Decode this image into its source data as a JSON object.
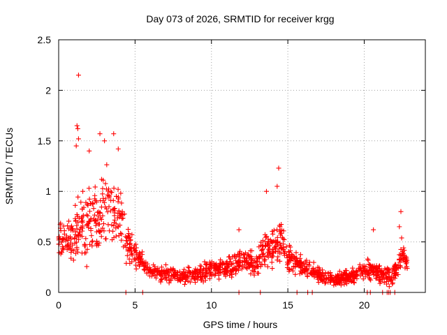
{
  "chart_data": {
    "type": "scatter",
    "title": "Day 073 of 2026, SRMTID for receiver krgg",
    "xlabel": "GPS time / hours",
    "ylabel": "SRMTID / TECUs",
    "xlim": [
      0,
      24
    ],
    "ylim": [
      0,
      2.5
    ],
    "xticks": [
      "0",
      "5",
      "10",
      "15",
      "20"
    ],
    "yticks": [
      "0",
      "0.5",
      "1",
      "1.5",
      "2",
      "2.5"
    ],
    "grid": true,
    "marker": "plus",
    "marker_color": "#ff0000",
    "series": [
      {
        "name": "SRMTID",
        "profile": [
          {
            "x": 0.0,
            "y": 0.55,
            "spread": 0.22
          },
          {
            "x": 0.5,
            "y": 0.48,
            "spread": 0.2
          },
          {
            "x": 1.0,
            "y": 0.55,
            "spread": 0.3
          },
          {
            "x": 1.5,
            "y": 0.65,
            "spread": 0.45
          },
          {
            "x": 2.0,
            "y": 0.7,
            "spread": 0.45
          },
          {
            "x": 2.5,
            "y": 0.8,
            "spread": 0.45
          },
          {
            "x": 3.0,
            "y": 0.85,
            "spread": 0.45
          },
          {
            "x": 3.5,
            "y": 0.8,
            "spread": 0.45
          },
          {
            "x": 4.0,
            "y": 0.8,
            "spread": 0.4
          },
          {
            "x": 4.5,
            "y": 0.5,
            "spread": 0.25
          },
          {
            "x": 5.0,
            "y": 0.35,
            "spread": 0.15
          },
          {
            "x": 5.5,
            "y": 0.3,
            "spread": 0.12
          },
          {
            "x": 6.0,
            "y": 0.2,
            "spread": 0.1
          },
          {
            "x": 7.0,
            "y": 0.18,
            "spread": 0.1
          },
          {
            "x": 8.0,
            "y": 0.15,
            "spread": 0.08
          },
          {
            "x": 9.0,
            "y": 0.18,
            "spread": 0.1
          },
          {
            "x": 10.0,
            "y": 0.22,
            "spread": 0.12
          },
          {
            "x": 11.0,
            "y": 0.25,
            "spread": 0.12
          },
          {
            "x": 12.0,
            "y": 0.3,
            "spread": 0.14
          },
          {
            "x": 13.0,
            "y": 0.28,
            "spread": 0.14
          },
          {
            "x": 13.5,
            "y": 0.45,
            "spread": 0.25
          },
          {
            "x": 14.0,
            "y": 0.4,
            "spread": 0.2
          },
          {
            "x": 14.5,
            "y": 0.55,
            "spread": 0.3
          },
          {
            "x": 15.0,
            "y": 0.35,
            "spread": 0.15
          },
          {
            "x": 16.0,
            "y": 0.25,
            "spread": 0.12
          },
          {
            "x": 17.0,
            "y": 0.18,
            "spread": 0.1
          },
          {
            "x": 18.0,
            "y": 0.12,
            "spread": 0.08
          },
          {
            "x": 19.0,
            "y": 0.15,
            "spread": 0.1
          },
          {
            "x": 20.0,
            "y": 0.22,
            "spread": 0.12
          },
          {
            "x": 21.0,
            "y": 0.2,
            "spread": 0.12
          },
          {
            "x": 21.5,
            "y": 0.15,
            "spread": 0.1
          },
          {
            "x": 22.0,
            "y": 0.2,
            "spread": 0.12
          },
          {
            "x": 22.5,
            "y": 0.4,
            "spread": 0.2
          },
          {
            "x": 22.9,
            "y": 0.25,
            "spread": 0.1
          }
        ],
        "notable_points": [
          {
            "x": 1.3,
            "y": 2.15
          },
          {
            "x": 1.2,
            "y": 1.65
          },
          {
            "x": 1.25,
            "y": 1.62
          },
          {
            "x": 1.15,
            "y": 1.45
          },
          {
            "x": 1.3,
            "y": 1.52
          },
          {
            "x": 2.7,
            "y": 1.57
          },
          {
            "x": 3.0,
            "y": 1.5
          },
          {
            "x": 3.6,
            "y": 1.57
          },
          {
            "x": 3.9,
            "y": 1.42
          },
          {
            "x": 2.0,
            "y": 1.4
          },
          {
            "x": 13.6,
            "y": 1.0
          },
          {
            "x": 14.4,
            "y": 1.23
          },
          {
            "x": 14.3,
            "y": 1.05
          },
          {
            "x": 11.8,
            "y": 0.62
          },
          {
            "x": 20.6,
            "y": 0.62
          },
          {
            "x": 22.4,
            "y": 0.8
          },
          {
            "x": 22.3,
            "y": 0.65
          }
        ],
        "zero_points": [
          4.4,
          5.5,
          11.8,
          13.2,
          15.6,
          16.3,
          16.6,
          20.2,
          20.4,
          21.2,
          21.5,
          21.6,
          21.7,
          22.0
        ]
      }
    ]
  }
}
